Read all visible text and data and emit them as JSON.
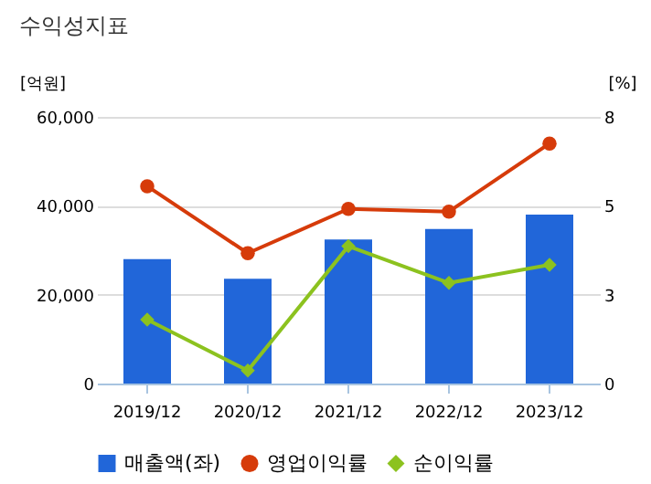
{
  "chart_data": {
    "type": "bar",
    "title": "수익성지표",
    "ylabel": "[억원]",
    "y2label": "[%]",
    "categories": [
      "2019/12",
      "2020/12",
      "2021/12",
      "2022/12",
      "2023/12"
    ],
    "series": [
      {
        "name": "매출액(좌)",
        "color": "#2166d9",
        "values": [
          28000,
          23600,
          32400,
          34800,
          38000
        ]
      },
      {
        "name": "영업이익률",
        "type": "line",
        "axis": "y2",
        "marker": "circle",
        "color": "#d63b0a",
        "values": [
          5.92,
          3.91,
          5.24,
          5.16,
          7.2
        ]
      },
      {
        "name": "순이익률",
        "type": "line",
        "axis": "y2",
        "marker": "diamond",
        "color": "#8cc21f",
        "values": [
          1.92,
          0.39,
          4.12,
          3.02,
          3.56
        ]
      }
    ],
    "ylim": [
      0,
      60000
    ],
    "yticks": [
      0,
      {
        "value": 20000,
        "label": "20,000"
      },
      {
        "value": 40000,
        "label": "40,000"
      },
      {
        "value": 60000,
        "label": "60,000"
      }
    ],
    "y2lim": [
      0,
      8
    ],
    "y2ticks": [
      0,
      {
        "value": 2.6667,
        "label": "3"
      },
      {
        "value": 5.3333,
        "label": "5"
      },
      8
    ],
    "grid": "y",
    "legend": "bottom"
  }
}
